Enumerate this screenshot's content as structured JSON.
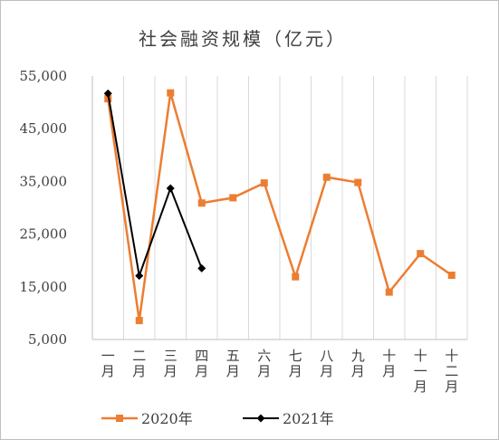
{
  "chart_data": {
    "type": "line",
    "title": "社会融资规模（亿元）",
    "xlabel": "",
    "ylabel": "",
    "categories": [
      "一月",
      "二月",
      "三月",
      "四月",
      "五月",
      "六月",
      "七月",
      "八月",
      "九月",
      "十月",
      "十一月",
      "十二月"
    ],
    "y_ticks": [
      "5,000",
      "15,000",
      "25,000",
      "35,000",
      "45,000",
      "55,000"
    ],
    "y_tick_values": [
      5000,
      15000,
      25000,
      35000,
      45000,
      55000
    ],
    "ylim": [
      5000,
      55000
    ],
    "grid": "vertical",
    "legend_position": "bottom",
    "series": [
      {
        "name": "2020年",
        "color": "#ed7d31",
        "marker": "square",
        "values": [
          50700,
          8600,
          51800,
          30900,
          31900,
          34700,
          16900,
          35800,
          34800,
          14000,
          21300,
          17200
        ]
      },
      {
        "name": "2021年",
        "color": "#000000",
        "marker": "diamond",
        "values": [
          51700,
          17100,
          33700,
          18500,
          null,
          null,
          null,
          null,
          null,
          null,
          null,
          null
        ]
      }
    ]
  }
}
